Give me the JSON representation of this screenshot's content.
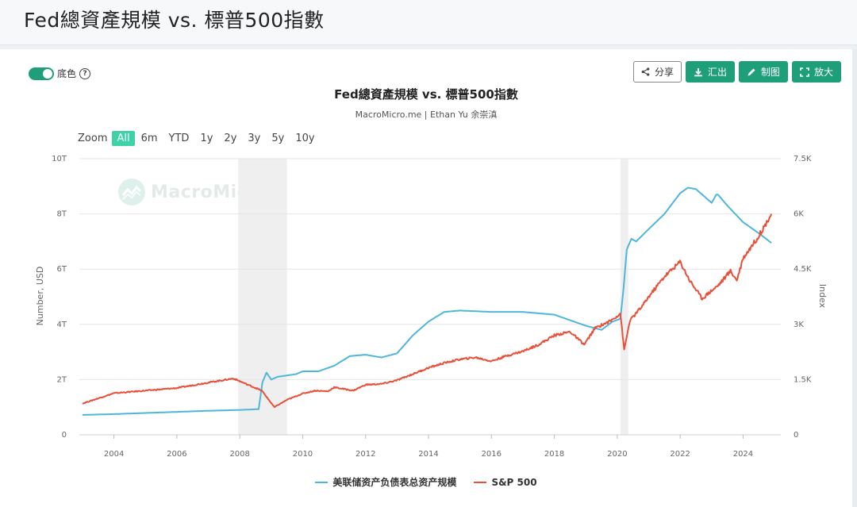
{
  "page": {
    "title": "Fed總資產規模 vs. 標普500指數"
  },
  "controls": {
    "toggle_label": "底色",
    "buttons": {
      "share": "分享",
      "export": "汇出",
      "draw": "制图",
      "fullscreen": "放大"
    },
    "zoom": {
      "label": "Zoom",
      "options": [
        "All",
        "6m",
        "YTD",
        "1y",
        "2y",
        "3y",
        "5y",
        "10y"
      ],
      "selected": "All"
    }
  },
  "watermark": "MacroMicro",
  "chart_data": {
    "type": "line",
    "title": "Fed總資產規模 vs. 標普500指數",
    "subtitle": "MacroMicro.me | Ethan Yu 余崇滇",
    "xlim": [
      2002.9,
      2025.2
    ],
    "x_ticks": [
      "2004",
      "2006",
      "2008",
      "2010",
      "2012",
      "2014",
      "2016",
      "2018",
      "2020",
      "2022",
      "2024"
    ],
    "y_left": {
      "label": "Number, USD",
      "ylim": [
        0,
        10
      ],
      "ticks": [
        "0",
        "2T",
        "4T",
        "6T",
        "8T",
        "10T"
      ]
    },
    "y_right": {
      "label": "Index",
      "ylim": [
        0,
        7500
      ],
      "ticks": [
        "0",
        "1.5K",
        "3K",
        "4.5K",
        "6K",
        "7.5K"
      ]
    },
    "recessions": [
      [
        2007.95,
        2009.5
      ],
      [
        2020.1,
        2020.35
      ]
    ],
    "legend_position": "bottom-center",
    "series": [
      {
        "name": "美联储资产负债表总资产规模",
        "axis": "left",
        "color": "#4fb6db",
        "x": [
          2003.0,
          2004.0,
          2005.0,
          2006.0,
          2007.0,
          2008.0,
          2008.6,
          2008.72,
          2008.85,
          2009.0,
          2009.2,
          2009.5,
          2009.8,
          2010.0,
          2010.5,
          2011.0,
          2011.5,
          2012.0,
          2012.5,
          2013.0,
          2013.5,
          2014.0,
          2014.5,
          2015.0,
          2016.0,
          2017.0,
          2018.0,
          2019.0,
          2019.5,
          2019.85,
          2020.1,
          2020.2,
          2020.3,
          2020.45,
          2020.6,
          2021.0,
          2021.5,
          2022.0,
          2022.25,
          2022.5,
          2023.0,
          2023.15,
          2023.2,
          2023.5,
          2024.0,
          2024.5,
          2024.9
        ],
        "y": [
          0.72,
          0.75,
          0.79,
          0.83,
          0.87,
          0.9,
          0.93,
          1.9,
          2.25,
          2.0,
          2.1,
          2.15,
          2.2,
          2.3,
          2.3,
          2.5,
          2.85,
          2.9,
          2.8,
          2.95,
          3.6,
          4.1,
          4.45,
          4.5,
          4.45,
          4.45,
          4.35,
          3.95,
          3.8,
          4.1,
          4.2,
          5.3,
          6.7,
          7.1,
          7.0,
          7.45,
          8.0,
          8.75,
          8.95,
          8.9,
          8.4,
          8.7,
          8.7,
          8.3,
          7.7,
          7.3,
          6.95
        ]
      },
      {
        "name": "S&P 500",
        "axis": "right",
        "color": "#e8503a",
        "x": [
          2003.0,
          2004.0,
          2005.0,
          2006.0,
          2007.0,
          2007.8,
          2008.2,
          2008.7,
          2009.1,
          2009.5,
          2010.0,
          2010.4,
          2010.8,
          2011.0,
          2011.6,
          2012.0,
          2012.5,
          2013.0,
          2013.5,
          2014.0,
          2014.5,
          2015.0,
          2015.5,
          2016.0,
          2016.5,
          2017.0,
          2017.5,
          2018.0,
          2018.5,
          2018.95,
          2019.3,
          2019.8,
          2020.1,
          2020.22,
          2020.4,
          2020.8,
          2021.0,
          2021.5,
          2022.0,
          2022.3,
          2022.7,
          2022.9,
          2023.2,
          2023.6,
          2023.8,
          2024.0,
          2024.5,
          2024.9
        ],
        "y": [
          850,
          1130,
          1200,
          1270,
          1420,
          1530,
          1380,
          1200,
          750,
          950,
          1120,
          1200,
          1180,
          1290,
          1200,
          1360,
          1380,
          1480,
          1650,
          1820,
          1950,
          2050,
          2100,
          2000,
          2150,
          2270,
          2450,
          2700,
          2800,
          2450,
          2900,
          3100,
          3300,
          2300,
          3100,
          3500,
          3750,
          4300,
          4700,
          4200,
          3700,
          3850,
          4050,
          4450,
          4200,
          4800,
          5400,
          6000
        ]
      }
    ]
  }
}
